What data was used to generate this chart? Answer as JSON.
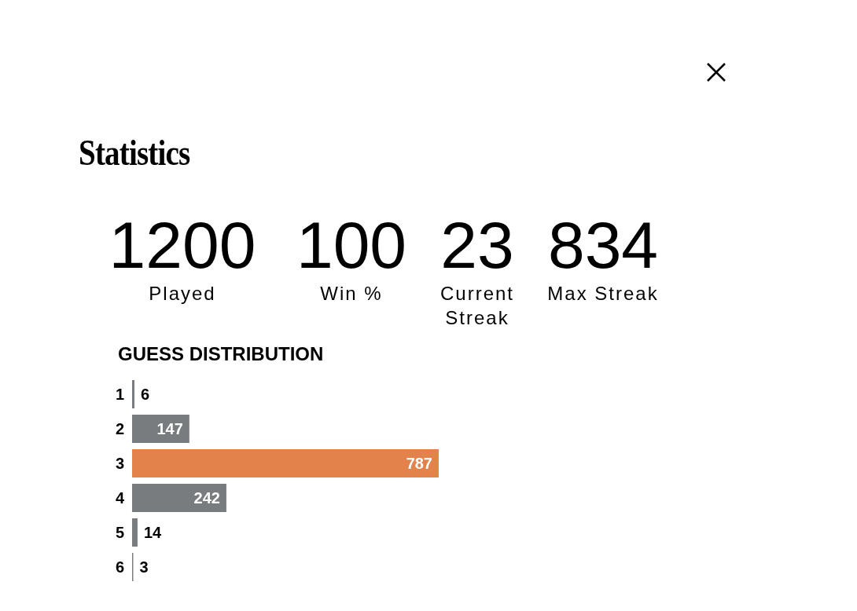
{
  "chart_data": [
    {
      "type": "other",
      "title": "Statistics",
      "categories": [
        "Played",
        "Win %",
        "Current Streak",
        "Max Streak"
      ],
      "values": [
        1200,
        100,
        23,
        834
      ],
      "data_labels": true
    },
    {
      "type": "bar",
      "orientation": "horizontal",
      "title": "GUESS DISTRIBUTION",
      "categories": [
        "1",
        "2",
        "3",
        "4",
        "5",
        "6"
      ],
      "values": [
        6,
        147,
        787,
        242,
        14,
        3
      ],
      "colors": [
        "#787c7e",
        "#787c7e",
        "#e3824b",
        "#787c7e",
        "#787c7e",
        "#787c7e"
      ],
      "data_labels": true
    }
  ]
}
